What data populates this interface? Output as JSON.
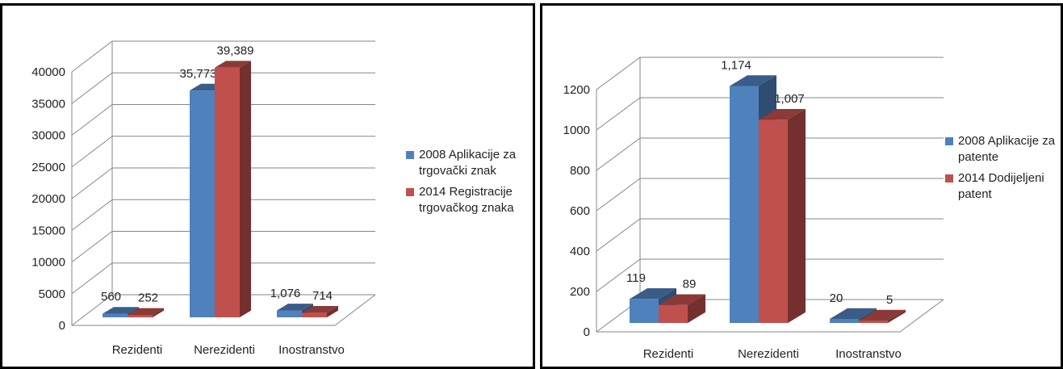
{
  "chart_data": [
    {
      "type": "bar",
      "categories": [
        "Rezidenti",
        "Nerezidenti",
        "Inostranstvo"
      ],
      "series": [
        {
          "name": "2008 Aplikacije za trgovački znak",
          "values": [
            560,
            35773,
            1076
          ],
          "labels": [
            "560",
            "35,773",
            "1,076"
          ],
          "color": "#4F81BD"
        },
        {
          "name": "2014 Registracije trgovačkog znaka",
          "values": [
            252,
            39389,
            714
          ],
          "labels": [
            "252",
            "39,389",
            "714"
          ],
          "color": "#C0504D"
        }
      ],
      "ylim": [
        0,
        40000
      ],
      "yticks": [
        "0",
        "5000",
        "10000",
        "15000",
        "20000",
        "25000",
        "30000",
        "35000",
        "40000"
      ],
      "grid": true,
      "legend": "right"
    },
    {
      "type": "bar",
      "categories": [
        "Rezidenti",
        "Nerezidenti",
        "Inostranstvo"
      ],
      "series": [
        {
          "name": "2008 Aplikacije za patente",
          "values": [
            119,
            1174,
            20
          ],
          "labels": [
            "119",
            "1,174",
            "20"
          ],
          "color": "#4F81BD"
        },
        {
          "name": "2014 Dodijeljeni patent",
          "values": [
            89,
            1007,
            5
          ],
          "labels": [
            "89",
            "1,007",
            "5"
          ],
          "color": "#C0504D"
        }
      ],
      "ylim": [
        0,
        1200
      ],
      "yticks": [
        "0",
        "200",
        "400",
        "600",
        "800",
        "1000",
        "1200"
      ],
      "grid": true,
      "legend": "right"
    }
  ]
}
